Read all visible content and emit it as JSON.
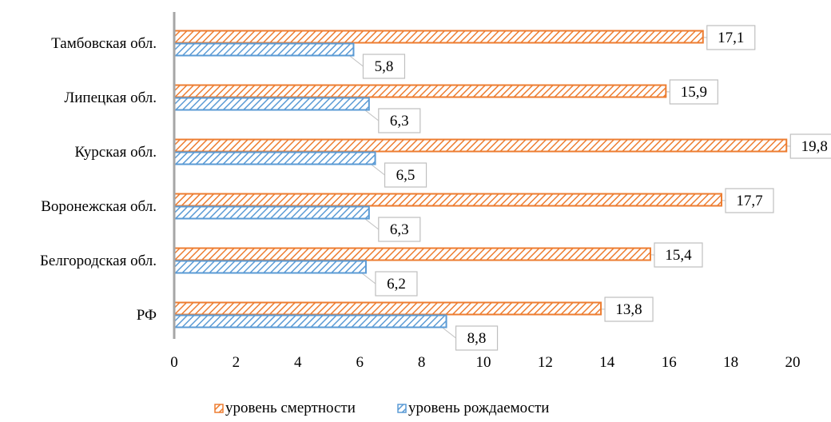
{
  "colors": {
    "mortality": "#ED7D31",
    "birth": "#5B9BD5",
    "axis": "#A6A6A6",
    "label_border": "#BFBFBF"
  },
  "chart_data": {
    "type": "bar",
    "orientation": "horizontal",
    "categories": [
      "Тамбовская обл.",
      "Липецкая обл.",
      "Курская обл.",
      "Воронежская обл.",
      "Белгородская обл.",
      "РФ"
    ],
    "series": [
      {
        "name": "уровень смертности",
        "values": [
          17.1,
          15.9,
          19.8,
          17.7,
          15.4,
          13.8
        ],
        "labels": [
          "17,1",
          "15,9",
          "19,8",
          "17,7",
          "15,4",
          "13,8"
        ],
        "pattern": "diagonal-hatch"
      },
      {
        "name": "уровень рождаемости",
        "values": [
          5.8,
          6.3,
          6.5,
          6.3,
          6.2,
          8.8
        ],
        "labels": [
          "5,8",
          "6,3",
          "6,5",
          "6,3",
          "6,2",
          "8,8"
        ],
        "pattern": "diagonal-hatch"
      }
    ],
    "xlim": [
      0,
      20
    ],
    "xticks": [
      "0",
      "2",
      "4",
      "6",
      "8",
      "10",
      "12",
      "14",
      "16",
      "18",
      "20"
    ],
    "grid": false,
    "legend_position": "bottom"
  }
}
